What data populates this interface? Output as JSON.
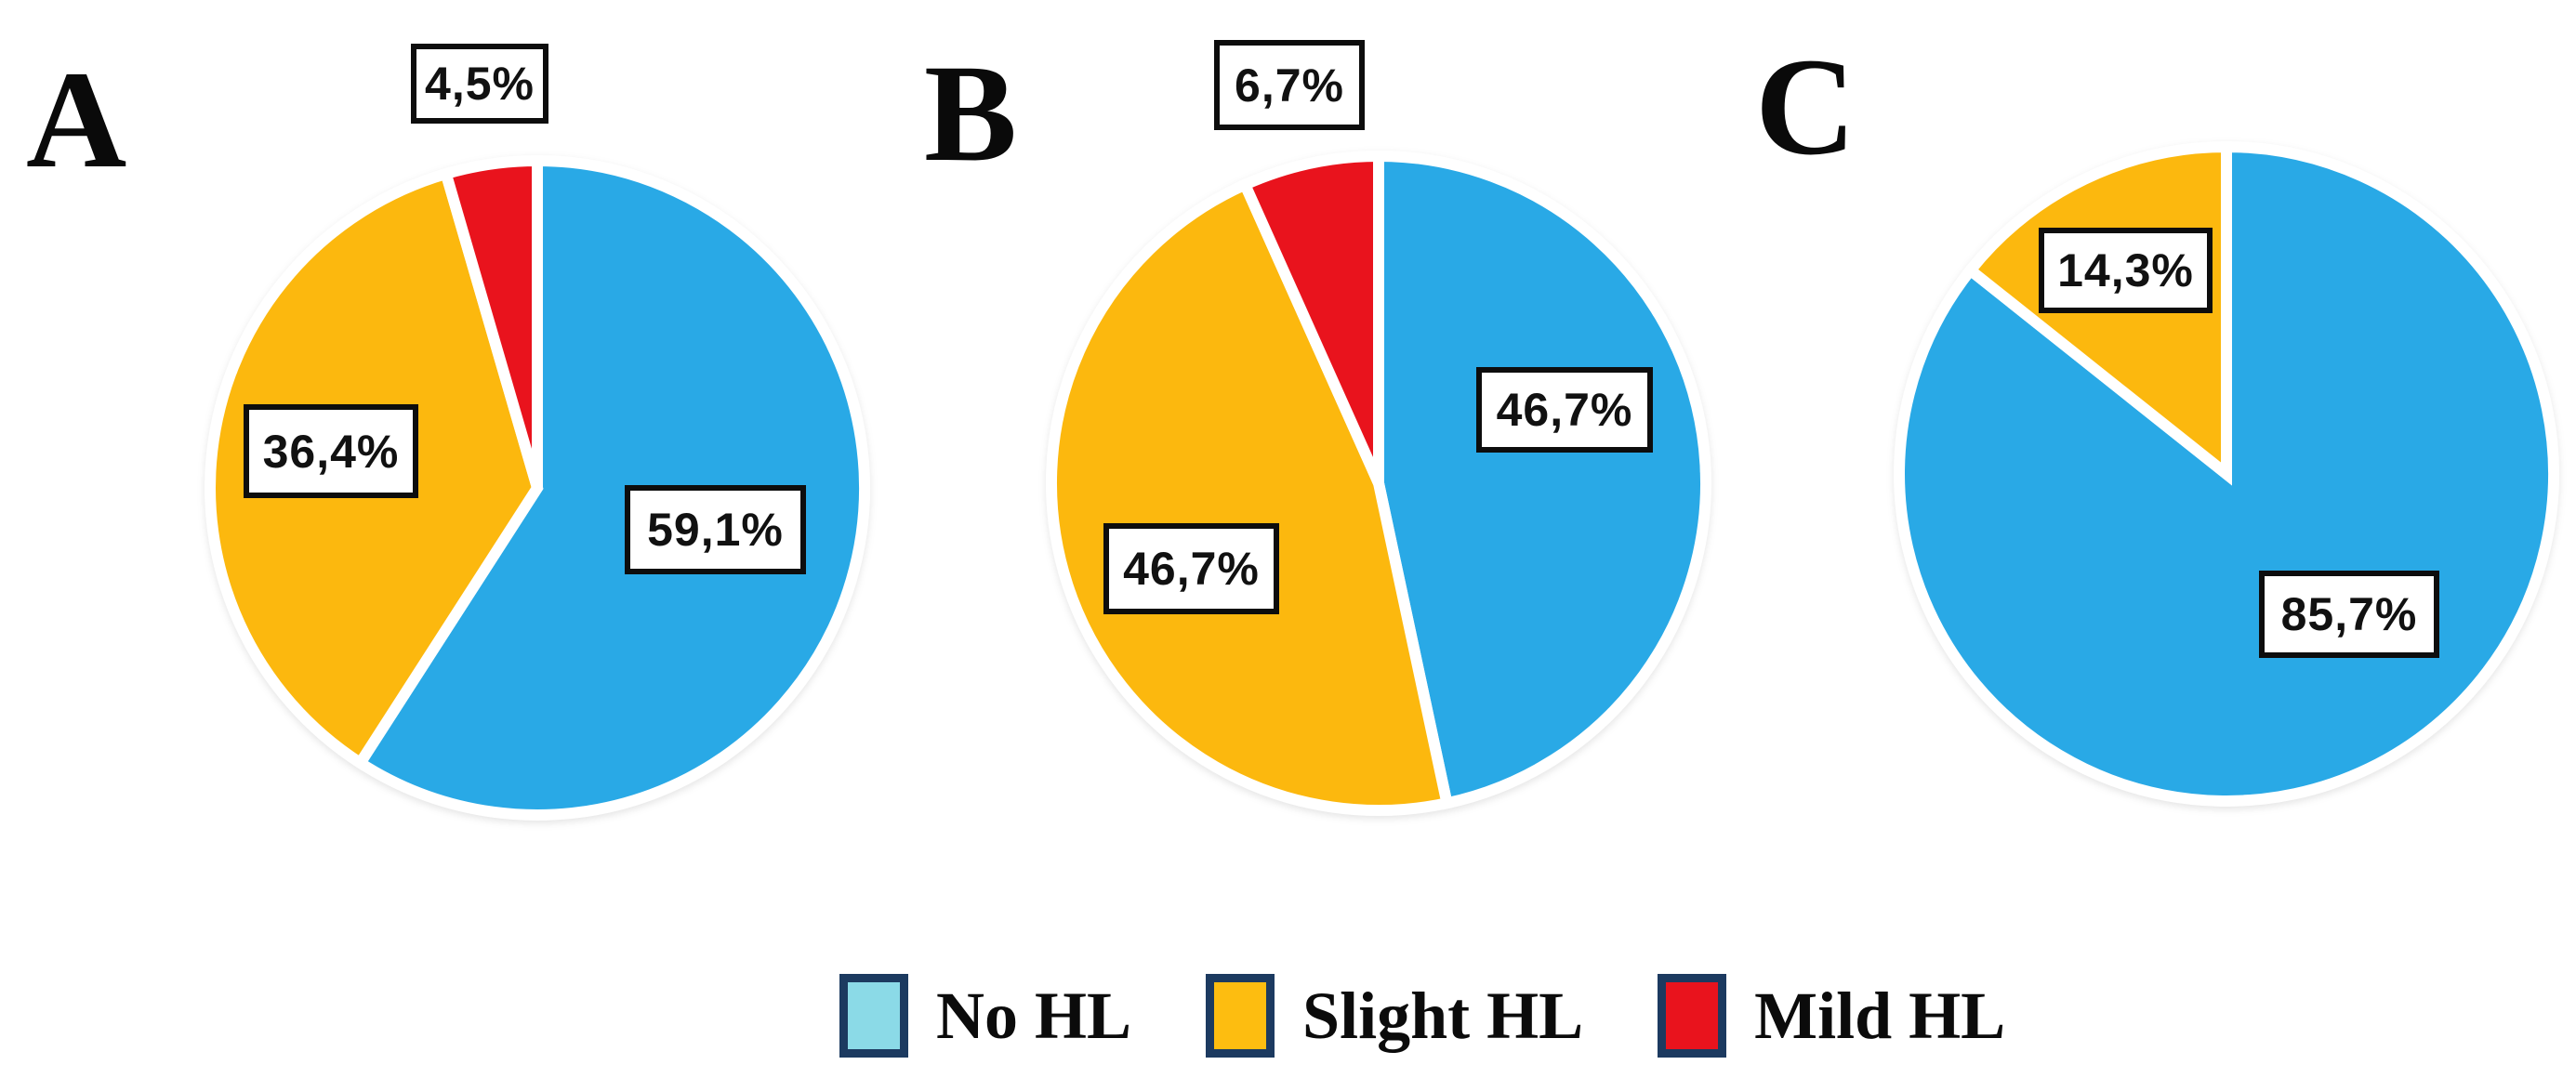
{
  "figure": {
    "background": "#FFFFFF",
    "description": "Three pie charts of hearing loss (HL) severity distribution"
  },
  "colors": {
    "No HL": "#29A9E6",
    "Slight HL": "#FCB80E",
    "Mild HL": "#E9131D",
    "slice_gap_stroke": "#FFFFFF",
    "label_box_border": "#0D0D0D",
    "legend_swatch_border": "#1C3A60"
  },
  "legend": {
    "items": [
      {
        "label": "No HL",
        "swatch": "#8BDAE7"
      },
      {
        "label": "Slight HL",
        "swatch": "#FDBD10"
      },
      {
        "label": "Mild HL",
        "swatch": "#E9131D"
      }
    ]
  },
  "chart_data": [
    {
      "type": "pie",
      "panel": "A",
      "start_angle_deg": 0,
      "direction": "clockwise",
      "slices": [
        {
          "label": "No HL",
          "value": 59.1,
          "display": "59,1%"
        },
        {
          "label": "Slight HL",
          "value": 36.4,
          "display": "36,4%"
        },
        {
          "label": "Mild HL",
          "value": 4.5,
          "display": "4,5%"
        }
      ]
    },
    {
      "type": "pie",
      "panel": "B",
      "start_angle_deg": 0,
      "direction": "clockwise",
      "slices": [
        {
          "label": "No HL",
          "value": 46.7,
          "display": "46,7%"
        },
        {
          "label": "Slight HL",
          "value": 46.7,
          "display": "46,7%"
        },
        {
          "label": "Mild HL",
          "value": 6.7,
          "display": "6,7%"
        }
      ]
    },
    {
      "type": "pie",
      "panel": "C",
      "start_angle_deg": 0,
      "direction": "clockwise",
      "slices": [
        {
          "label": "No HL",
          "value": 85.7,
          "display": "85,7%"
        },
        {
          "label": "Slight HL",
          "value": 14.3,
          "display": "14,3%"
        }
      ]
    }
  ]
}
